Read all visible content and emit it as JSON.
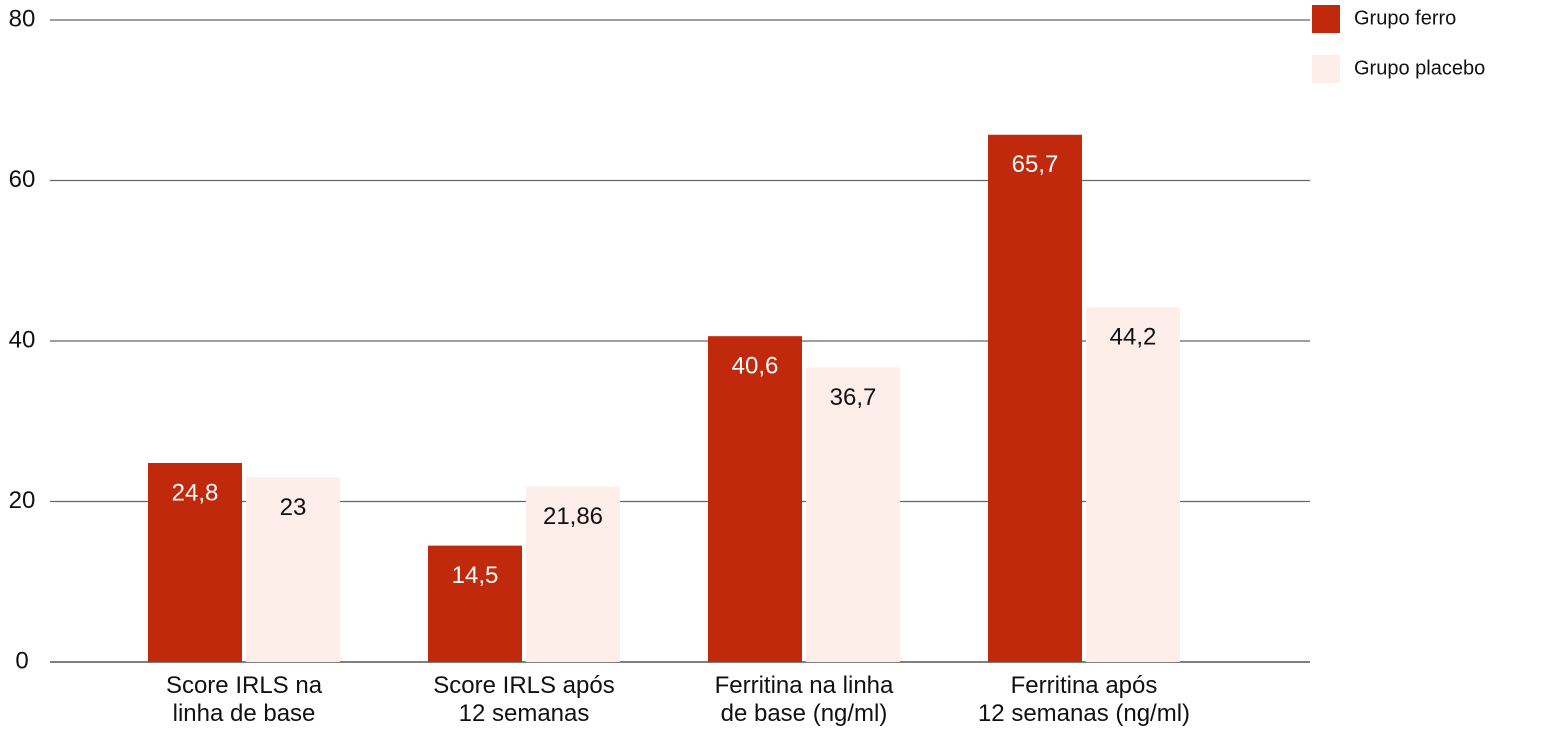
{
  "chart_data": {
    "type": "bar",
    "categories": [
      "Score IRLS na\nlinha de base",
      "Score IRLS após\n12 semanas",
      "Ferritina na linha\nde base (ng/ml)",
      "Ferritina após\n12 semanas (ng/ml)"
    ],
    "series": [
      {
        "name": "Grupo ferro",
        "color": "#c0290b",
        "label_color": "#ffffff",
        "values": [
          24.8,
          14.5,
          40.6,
          65.7
        ],
        "value_labels": [
          "24,8",
          "14,5",
          "40,6",
          "65,7"
        ]
      },
      {
        "name": "Grupo placebo",
        "color": "#fdeeea",
        "label_color": "#111111",
        "values": [
          23,
          21.86,
          36.7,
          44.2
        ],
        "value_labels": [
          "23",
          "21,86",
          "36,7",
          "44,2"
        ]
      }
    ],
    "ylim": [
      0,
      80
    ],
    "yticks": [
      0,
      20,
      40,
      60,
      80
    ],
    "grid": true,
    "legend": "top-right"
  }
}
